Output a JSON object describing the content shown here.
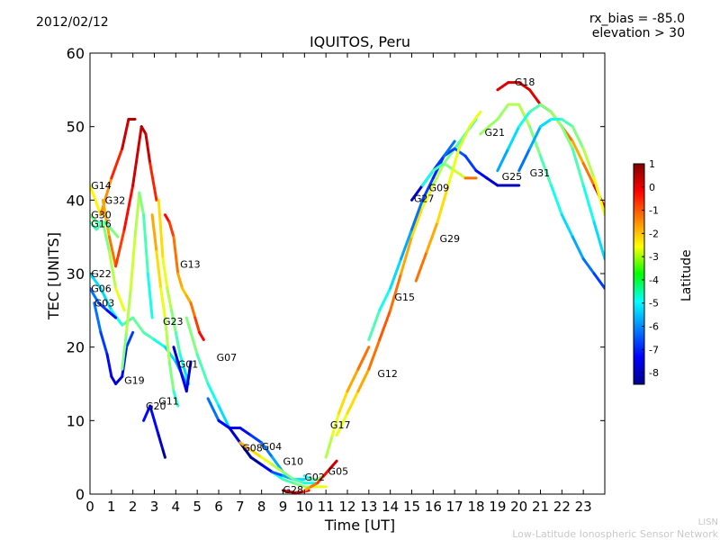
{
  "header": {
    "date": "2012/02/12",
    "rx_bias": "rx_bias = -85.0",
    "elevation": "elevation > 30"
  },
  "footer": {
    "line1": "LISN",
    "line2": "Low-Latitude Ionospheric Sensor Network"
  },
  "chart_data": {
    "type": "scatter",
    "title": "IQUITOS, Peru",
    "xlabel": "Time [UT]",
    "ylabel": "TEC [UNITS]",
    "xlim": [
      0,
      24
    ],
    "ylim": [
      0,
      60
    ],
    "x_ticks": [
      0,
      1,
      2,
      3,
      4,
      5,
      6,
      7,
      8,
      9,
      10,
      11,
      12,
      13,
      14,
      15,
      16,
      17,
      18,
      19,
      20,
      21,
      22,
      23
    ],
    "y_ticks": [
      0,
      10,
      20,
      30,
      40,
      50,
      60
    ],
    "grid": false,
    "colorbar": {
      "label": "Latitude",
      "min": -8.5,
      "max": 1,
      "ticks": [
        1,
        0,
        -1,
        -2,
        -3,
        -4,
        -5,
        -6,
        -7,
        -8
      ],
      "colormap": "jet"
    },
    "series": [
      {
        "name": "G14",
        "x": [
          0.0,
          0.5,
          1.0,
          1.5,
          1.8,
          2.1
        ],
        "y": [
          42,
          38,
          43,
          47,
          51,
          51
        ],
        "lat": [
          -3,
          -2,
          -1,
          0,
          0.5,
          0.5
        ]
      },
      {
        "name": "G32",
        "x": [
          0.6,
          0.9,
          1.2,
          1.6,
          2.0,
          2.4,
          2.6,
          2.8,
          3.1
        ],
        "y": [
          40,
          35,
          31,
          36,
          42,
          50,
          49,
          45,
          40
        ],
        "lat": [
          -2,
          -1.5,
          -1,
          -0.5,
          0,
          0.5,
          0.6,
          0,
          -1
        ]
      },
      {
        "name": "G30",
        "x": [
          0.0,
          0.3,
          0.7,
          1.0,
          1.3
        ],
        "y": [
          38,
          37,
          37,
          36,
          35
        ],
        "lat": [
          -3.5,
          -4,
          -4.5,
          -4,
          -3.5
        ]
      },
      {
        "name": "G16",
        "x": [
          0.0,
          0.3,
          0.6,
          0.9,
          1.2,
          1.6
        ],
        "y": [
          37,
          36,
          37,
          33,
          28,
          25
        ],
        "lat": [
          -4,
          -4.5,
          -4,
          -3.5,
          -3,
          -2.5
        ]
      },
      {
        "name": "G22",
        "x": [
          0.0,
          0.5,
          1.0,
          1.5,
          2.0,
          2.5,
          3.0,
          3.5,
          4.0,
          4.5
        ],
        "y": [
          30,
          28,
          25,
          23,
          24,
          22,
          21,
          20,
          18,
          15
        ],
        "lat": [
          -5,
          -5.5,
          -5,
          -4.5,
          -4,
          -4,
          -4.5,
          -5,
          -5.5,
          -6
        ]
      },
      {
        "name": "G06",
        "x": [
          0.0,
          0.4,
          0.8,
          1.2
        ],
        "y": [
          28,
          26,
          25,
          24
        ],
        "lat": [
          -6,
          -6.5,
          -7,
          -7.5
        ]
      },
      {
        "name": "G03",
        "x": [
          0.2,
          0.5,
          0.8,
          1.0,
          1.2,
          1.5,
          1.7,
          2.0
        ],
        "y": [
          26,
          22,
          19,
          16,
          15,
          16,
          20,
          22
        ],
        "lat": [
          -6,
          -6.5,
          -7,
          -7.5,
          -8,
          -7.5,
          -7,
          -6.5
        ]
      },
      {
        "name": "G19",
        "x": [
          1.5,
          1.7,
          1.9,
          2.1,
          2.3,
          2.5,
          2.7,
          2.9
        ],
        "y": [
          17,
          22,
          28,
          35,
          41,
          38,
          30,
          24
        ],
        "lat": [
          -4,
          -3.5,
          -3,
          -3,
          -3.5,
          -4,
          -4.5,
          -5
        ]
      },
      {
        "name": "G20",
        "x": [
          2.5,
          2.8,
          3.0,
          3.2,
          3.4,
          3.5
        ],
        "y": [
          10,
          12,
          10,
          8,
          6,
          5
        ],
        "lat": [
          -7,
          -7.5,
          -7,
          -7.5,
          -8,
          -8.5
        ]
      },
      {
        "name": "G11",
        "x": [
          2.9,
          3.1,
          3.3,
          3.5,
          3.7,
          3.9,
          4.1
        ],
        "y": [
          38,
          33,
          28,
          24,
          18,
          14,
          12
        ],
        "lat": [
          -1.5,
          -2,
          -2.5,
          -3,
          -3.5,
          -4,
          -5
        ]
      },
      {
        "name": "G23",
        "x": [
          3.2,
          3.4,
          3.6,
          3.8,
          4.0,
          4.2,
          4.4,
          4.6
        ],
        "y": [
          40,
          32,
          28,
          25,
          22,
          19,
          17,
          15
        ],
        "lat": [
          -2,
          -2.5,
          -3,
          -3.5,
          -4,
          -4.5,
          -5,
          -5.5
        ]
      },
      {
        "name": "G13",
        "x": [
          3.5,
          3.7,
          3.9,
          4.1,
          4.3,
          4.5,
          4.7,
          4.9,
          5.1,
          5.3
        ],
        "y": [
          38,
          37,
          35,
          30,
          28,
          27,
          26,
          24,
          22,
          21
        ],
        "lat": [
          0,
          -0.5,
          -1,
          -1.5,
          -2,
          -2,
          -1.5,
          -1,
          -0.5,
          0
        ]
      },
      {
        "name": "G01",
        "x": [
          3.9,
          4.1,
          4.3,
          4.5,
          4.7
        ],
        "y": [
          20,
          18,
          16,
          14,
          18
        ],
        "lat": [
          -8,
          -7.5,
          -7,
          -7.5,
          -8
        ]
      },
      {
        "name": "G07",
        "x": [
          4.5,
          5.0,
          5.5,
          6.0,
          6.5,
          7.0,
          7.5,
          8.0,
          8.5,
          9.0,
          9.5,
          10.0,
          10.5,
          11.0
        ],
        "y": [
          24,
          19,
          15,
          12,
          9,
          7,
          5,
          4,
          3,
          2,
          1.5,
          1,
          1,
          1
        ],
        "lat": [
          -3.5,
          -4,
          -4.5,
          -5,
          -5.5,
          -6,
          -6,
          -5.5,
          -5,
          -4.5,
          -4,
          -3.5,
          -3,
          -2.5
        ]
      },
      {
        "name": "G08",
        "x": [
          5.5,
          6.0,
          6.5,
          7.0,
          7.5,
          8.0,
          8.5,
          9.0
        ],
        "y": [
          13,
          10,
          9,
          9,
          8,
          7,
          5,
          3
        ],
        "lat": [
          -6,
          -6.5,
          -7,
          -7.5,
          -7,
          -6.5,
          -6,
          -5.5
        ]
      },
      {
        "name": "G04",
        "x": [
          6.0,
          6.5,
          7.0,
          7.5,
          8.0,
          8.5,
          9.0,
          9.5,
          10.0
        ],
        "y": [
          10,
          9,
          7,
          5,
          4,
          3,
          2.5,
          2,
          2
        ],
        "lat": [
          -7,
          -7.5,
          -8,
          -8.5,
          -8,
          -7,
          -6,
          -5.5,
          -5
        ]
      },
      {
        "name": "G10",
        "x": [
          7.0,
          7.5,
          8.0,
          8.5,
          9.0,
          9.5,
          10.0,
          10.5
        ],
        "y": [
          7,
          6,
          5,
          4,
          3,
          2,
          1.5,
          1.5
        ],
        "lat": [
          -1.5,
          -2,
          -2.5,
          -3,
          -3.5,
          -4,
          -4.5,
          -5
        ]
      },
      {
        "name": "G28",
        "x": [
          9.0,
          9.3,
          9.6,
          9.9,
          10.2
        ],
        "y": [
          0.5,
          0.3,
          0.2,
          0.3,
          0.5
        ],
        "lat": [
          0.5,
          0.3,
          0.2,
          0,
          -0.5
        ]
      },
      {
        "name": "G02",
        "x": [
          10.0,
          10.3,
          10.6,
          10.9,
          11.2
        ],
        "y": [
          2.5,
          2,
          2,
          2.5,
          3.5
        ],
        "lat": [
          -5,
          -4.5,
          -4,
          -3.5,
          -3
        ]
      },
      {
        "name": "G05",
        "x": [
          10.0,
          10.3,
          10.6,
          10.9,
          11.2,
          11.5
        ],
        "y": [
          0.5,
          1,
          1.5,
          2.5,
          3.5,
          4.5
        ],
        "lat": [
          -2,
          -1.5,
          -1,
          -0.5,
          0,
          0.5
        ]
      },
      {
        "name": "G17",
        "x": [
          11.0,
          11.3,
          11.6,
          12.0,
          12.5,
          13.0
        ],
        "y": [
          5,
          8,
          11,
          14,
          17,
          20
        ],
        "lat": [
          -3.5,
          -3,
          -2.5,
          -2,
          -1.5,
          -1
        ]
      },
      {
        "name": "G12",
        "x": [
          11.5,
          12.0,
          12.5,
          13.0,
          13.5,
          14.0,
          14.5,
          15.0,
          15.5,
          16.0,
          16.5,
          17.0,
          17.5,
          18.0
        ],
        "y": [
          8,
          11,
          14,
          17,
          21,
          25,
          30,
          35,
          39,
          42,
          45,
          47,
          49,
          51
        ],
        "lat": [
          -3,
          -2.5,
          -2,
          -1.5,
          -1,
          -1,
          -1.5,
          -2,
          -2.5,
          -3,
          -3.5,
          -4,
          -4.5,
          -5
        ]
      },
      {
        "name": "G15",
        "x": [
          13.0,
          13.5,
          14.0,
          14.5,
          15.0,
          15.5,
          16.0,
          16.5,
          17.0,
          17.5,
          18.0,
          18.5,
          19.0,
          19.5,
          20.0
        ],
        "y": [
          21,
          25,
          28,
          32,
          36,
          40,
          43,
          46,
          47,
          46,
          44,
          43,
          42,
          42,
          42
        ],
        "lat": [
          -4,
          -4.5,
          -5,
          -5.5,
          -6,
          -6.5,
          -7,
          -7,
          -6.5,
          -6.5,
          -7,
          -7.5,
          -8,
          -8,
          -8
        ]
      },
      {
        "name": "G27",
        "x": [
          15.0,
          15.5,
          16.0,
          16.5,
          17.0
        ],
        "y": [
          40,
          42,
          44,
          46,
          48
        ],
        "lat": [
          -8,
          -7.5,
          -7,
          -6.5,
          -6
        ]
      },
      {
        "name": "G09",
        "x": [
          15.5,
          16.0,
          16.5,
          17.0,
          17.5,
          18.0
        ],
        "y": [
          42,
          44,
          45,
          44,
          43,
          43
        ],
        "lat": [
          -5,
          -4.5,
          -4,
          -3.5,
          -2.5,
          0
        ]
      },
      {
        "name": "G29",
        "x": [
          15.2,
          15.7,
          16.2,
          16.7,
          17.2,
          17.7,
          18.2
        ],
        "y": [
          29,
          33,
          37,
          42,
          47,
          50,
          52
        ],
        "lat": [
          -1,
          -1.5,
          -2,
          -2.5,
          -3,
          -3,
          -2.5
        ]
      },
      {
        "name": "G21",
        "x": [
          18.2,
          18.6,
          19.0,
          19.5,
          20.0,
          20.5,
          21.0,
          21.5,
          22.0,
          22.5,
          23.0,
          23.5,
          24.0
        ],
        "y": [
          49,
          50,
          51,
          53,
          53,
          50,
          46,
          42,
          38,
          35,
          32,
          30,
          28
        ],
        "lat": [
          -3.5,
          -3.5,
          -3.5,
          -3.5,
          -3,
          -3.5,
          -4,
          -4.5,
          -5,
          -5.5,
          -6,
          -6.5,
          -7
        ]
      },
      {
        "name": "G18",
        "x": [
          19.0,
          19.5,
          20.0,
          20.5,
          21.0,
          21.5,
          22.0,
          22.5,
          23.0,
          23.5,
          24.0
        ],
        "y": [
          55,
          56,
          56,
          55,
          53,
          52,
          50,
          48,
          45,
          42,
          39
        ],
        "lat": [
          0,
          0.2,
          0.3,
          0.2,
          0,
          -0.5,
          -1,
          -1.5,
          -2,
          -0.5,
          0.5
        ]
      },
      {
        "name": "G25",
        "x": [
          19.0,
          19.5,
          20.0,
          20.5,
          21.0,
          21.5,
          22.0,
          22.5,
          23.0,
          23.5,
          24.0
        ],
        "y": [
          44,
          47,
          50,
          52,
          53,
          52,
          50,
          47,
          42,
          37,
          32
        ],
        "lat": [
          -6,
          -5.5,
          -5,
          -4.5,
          -4,
          -3.5,
          -3.5,
          -4,
          -4.5,
          -5,
          -5.5
        ]
      },
      {
        "name": "G31",
        "x": [
          20.0,
          20.5,
          21.0,
          21.5,
          22.0,
          22.5,
          23.0,
          23.5,
          24.0
        ],
        "y": [
          44,
          47,
          50,
          51,
          51,
          50,
          47,
          43,
          38
        ],
        "lat": [
          -6.5,
          -6,
          -5.5,
          -5,
          -4.5,
          -4,
          -3.5,
          -3,
          -2.5
        ]
      }
    ],
    "labels": [
      {
        "text": "G14",
        "x": 0.05,
        "y": 42
      },
      {
        "text": "G32",
        "x": 0.7,
        "y": 40
      },
      {
        "text": "G30",
        "x": 0.05,
        "y": 38
      },
      {
        "text": "G16",
        "x": 0.05,
        "y": 36.8
      },
      {
        "text": "G22",
        "x": 0.05,
        "y": 30
      },
      {
        "text": "G06",
        "x": 0.05,
        "y": 28
      },
      {
        "text": "G03",
        "x": 0.2,
        "y": 26
      },
      {
        "text": "G19",
        "x": 1.6,
        "y": 15.5
      },
      {
        "text": "G20",
        "x": 2.6,
        "y": 12
      },
      {
        "text": "G11",
        "x": 3.2,
        "y": 12.7
      },
      {
        "text": "G23",
        "x": 3.4,
        "y": 23.5
      },
      {
        "text": "G13",
        "x": 4.2,
        "y": 31.3
      },
      {
        "text": "G01",
        "x": 4.1,
        "y": 17.7
      },
      {
        "text": "G07",
        "x": 5.9,
        "y": 18.6
      },
      {
        "text": "G08",
        "x": 7.1,
        "y": 6.3
      },
      {
        "text": "G04",
        "x": 8.0,
        "y": 6.5
      },
      {
        "text": "G10",
        "x": 9.0,
        "y": 4.5
      },
      {
        "text": "G28",
        "x": 9.0,
        "y": 0.6
      },
      {
        "text": "G02",
        "x": 10.0,
        "y": 2.3
      },
      {
        "text": "G05",
        "x": 11.1,
        "y": 3.1
      },
      {
        "text": "G17",
        "x": 11.2,
        "y": 9.4
      },
      {
        "text": "G12",
        "x": 13.4,
        "y": 16.4
      },
      {
        "text": "G15",
        "x": 14.2,
        "y": 26.8
      },
      {
        "text": "G27",
        "x": 15.1,
        "y": 40.2
      },
      {
        "text": "G09",
        "x": 15.8,
        "y": 41.7
      },
      {
        "text": "G29",
        "x": 16.3,
        "y": 34.8
      },
      {
        "text": "G21",
        "x": 18.4,
        "y": 49.2
      },
      {
        "text": "G18",
        "x": 19.8,
        "y": 56.1
      },
      {
        "text": "G25",
        "x": 19.2,
        "y": 43.2
      },
      {
        "text": "G31",
        "x": 20.5,
        "y": 43.7
      }
    ]
  }
}
